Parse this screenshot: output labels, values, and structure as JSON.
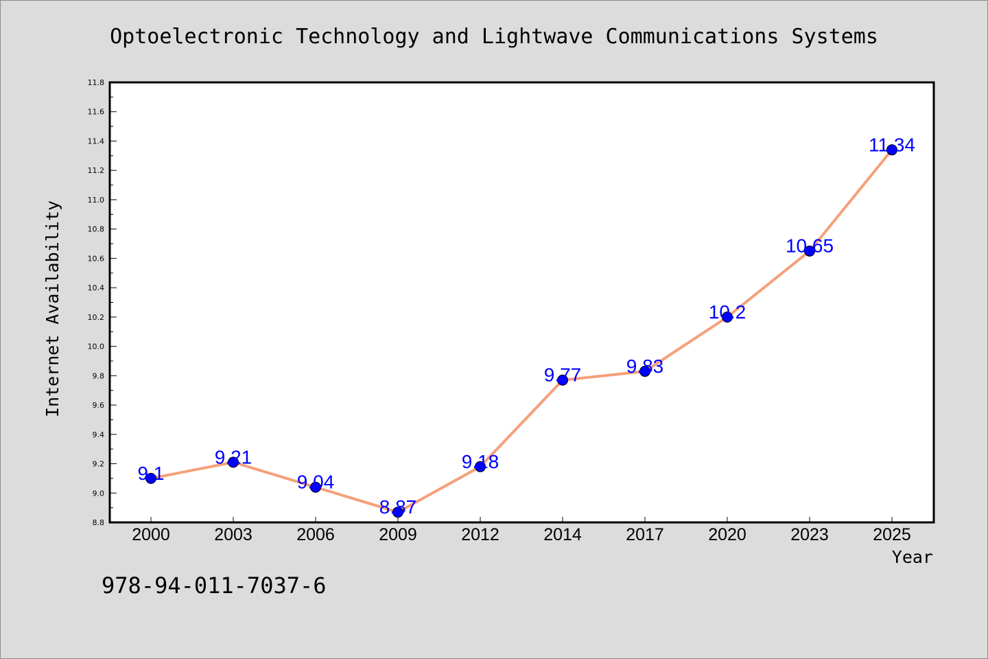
{
  "colors": {
    "background": "#dcdcdc",
    "plot_background": "#ffffff",
    "line": "#f5a07a",
    "marker": "#0000ff",
    "data_label": "#0000ff"
  },
  "chart_data": {
    "type": "line",
    "title": "Optoelectronic Technology and Lightwave Communications Systems",
    "xlabel": "Year",
    "ylabel": "Internet Availability",
    "categories": [
      "2000",
      "2003",
      "2006",
      "2009",
      "2012",
      "2014",
      "2017",
      "2020",
      "2023",
      "2025"
    ],
    "series": [
      {
        "values": [
          9.1,
          9.21,
          9.04,
          8.87,
          9.18,
          9.77,
          9.83,
          10.2,
          10.65,
          11.34
        ]
      }
    ],
    "data_labels": [
      "9.1",
      "9.21",
      "9.04",
      "8.87",
      "9.18",
      "9.77",
      "9.83",
      "10.2",
      "10.65",
      "11.34"
    ],
    "ylim": [
      8.8,
      11.8
    ],
    "yticks": [
      "8.8",
      "9.0",
      "9.2",
      "9.4",
      "9.6",
      "9.8",
      "10.0",
      "10.2",
      "10.4",
      "10.6",
      "10.8",
      "11.0",
      "11.2",
      "11.4",
      "11.6",
      "11.8"
    ],
    "grid": false,
    "legend": false
  },
  "footer": {
    "isbn": "978-94-011-7037-6"
  }
}
